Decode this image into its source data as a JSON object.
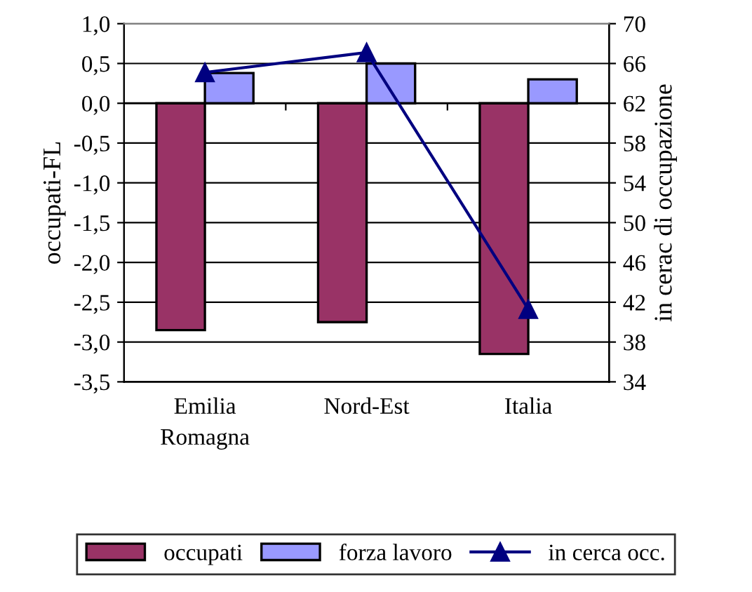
{
  "chart_data": {
    "type": "bar",
    "categories": [
      "Emilia\nRomagna",
      "Nord-Est",
      "Italia"
    ],
    "series": [
      {
        "name": "occupati",
        "color": "#993366",
        "values": [
          -2.85,
          -2.75,
          -3.15
        ]
      },
      {
        "name": "forza lavoro",
        "color": "#9999ff",
        "values": [
          0.38,
          0.5,
          0.3
        ]
      },
      {
        "name": "in cerca occ.",
        "color": "#000080",
        "type": "line",
        "axis": "y2",
        "marker": "triangle",
        "values": [
          65.1,
          67.1,
          41.3
        ]
      }
    ],
    "ylabel": "occupati-FL",
    "y2label": "in cerac di occupazione",
    "ylim": [
      -3.5,
      1.0
    ],
    "yticks": [
      {
        "value": -3.5,
        "label": "-3,5"
      },
      {
        "value": -3.0,
        "label": "-3,0"
      },
      {
        "value": -2.5,
        "label": "-2,5"
      },
      {
        "value": -2.0,
        "label": "-2,0"
      },
      {
        "value": -1.5,
        "label": "-1,5"
      },
      {
        "value": -1.0,
        "label": "-1,0"
      },
      {
        "value": -0.5,
        "label": "-0,5"
      },
      {
        "value": 0.0,
        "label": "0,0"
      },
      {
        "value": 0.5,
        "label": "0,5"
      },
      {
        "value": 1.0,
        "label": "1,0"
      }
    ],
    "y2lim": [
      34,
      70
    ],
    "y2ticks": [
      34,
      38,
      42,
      46,
      50,
      54,
      58,
      62,
      66,
      70
    ],
    "grid": "y",
    "legend": "bottom"
  }
}
